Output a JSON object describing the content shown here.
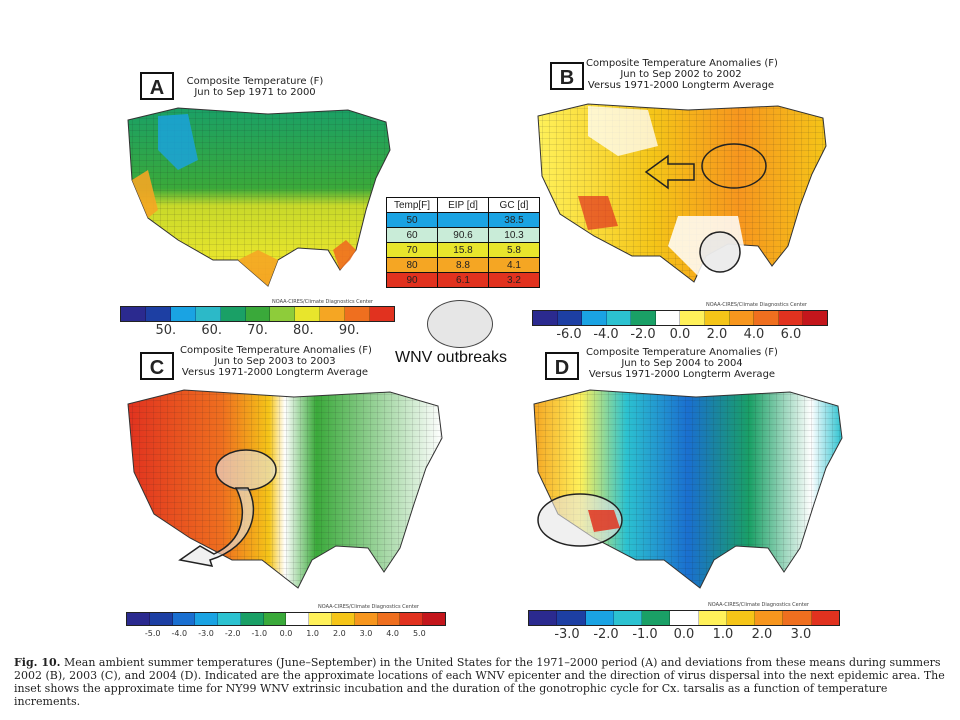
{
  "panels": {
    "a": {
      "label": "A",
      "title_lines": [
        "Composite Temperature (F)",
        "Jun to Sep 1971 to 2000"
      ],
      "colorbar": {
        "colors": [
          "#2b2a8f",
          "#1d3fa3",
          "#1aa3e3",
          "#2cb9c8",
          "#1aa066",
          "#3aa93a",
          "#8ecc3a",
          "#e8e52c",
          "#f5a623",
          "#ef6f1f",
          "#e1321f"
        ],
        "ticks": [
          "50.",
          "60.",
          "70.",
          "80.",
          "90."
        ],
        "credit": "NOAA-CIRES/Climate Diagnostics Center"
      }
    },
    "b": {
      "label": "B",
      "title_lines": [
        "Composite Temperature Anomalies (F)",
        "Jun to Sep 2002 to 2002",
        "Versus 1971-2000 Longterm Average"
      ],
      "colorbar": {
        "colors": [
          "#2b2a8f",
          "#1d3fa3",
          "#1aa3e3",
          "#2cc2d0",
          "#1aa066",
          "#ffffff",
          "#fff15a",
          "#f5c518",
          "#f7961e",
          "#ef6f1f",
          "#e1321f",
          "#c4161c"
        ],
        "ticks": [
          "-6.0",
          "-4.0",
          "-2.0",
          "0.0",
          "2.0",
          "4.0",
          "6.0"
        ],
        "credit": "NOAA-CIRES/Climate Diagnostics Center"
      }
    },
    "c": {
      "label": "C",
      "title_lines": [
        "Composite Temperature Anomalies (F)",
        "Jun to Sep 2003 to 2003",
        "Versus 1971-2000 Longterm Average"
      ],
      "colorbar": {
        "colors": [
          "#2b2a8f",
          "#1d3fa3",
          "#1a6fd0",
          "#1aa3e3",
          "#2cc2d0",
          "#1aa066",
          "#3aa93a",
          "#ffffff",
          "#fff15a",
          "#f5c518",
          "#f7961e",
          "#ef6f1f",
          "#e1321f",
          "#c4161c"
        ],
        "ticks": [
          "-5.0",
          "-4.0",
          "-3.0",
          "-2.0",
          "-1.0",
          "0.0",
          "1.0",
          "2.0",
          "3.0",
          "4.0",
          "5.0"
        ],
        "credit": "NOAA-CIRES/Climate Diagnostics Center"
      }
    },
    "d": {
      "label": "D",
      "title_lines": [
        "Composite Temperature Anomalies (F)",
        "Jun to Sep 2004 to 2004",
        "Versus 1971-2000 Longterm Average"
      ],
      "colorbar": {
        "colors": [
          "#2b2a8f",
          "#1d3fa3",
          "#1aa3e3",
          "#2cc2d0",
          "#1aa066",
          "#ffffff",
          "#fff15a",
          "#f5c518",
          "#f7961e",
          "#ef6f1f",
          "#e1321f"
        ],
        "ticks": [
          "-3.0",
          "-2.0",
          "-1.0",
          "0.0",
          "1.0",
          "2.0",
          "3.0"
        ],
        "credit": "NOAA-CIRES/Climate Diagnostics Center"
      }
    }
  },
  "inset_table": {
    "headers": [
      "Temp[F]",
      "EIP [d]",
      "GC [d]"
    ],
    "rows": [
      {
        "temp": "50",
        "eip": "",
        "gc": "38.5",
        "color": "#1aa3e3"
      },
      {
        "temp": "60",
        "eip": "90.6",
        "gc": "10.3",
        "color": "#c9ecd8"
      },
      {
        "temp": "70",
        "eip": "15.8",
        "gc": "5.8",
        "color": "#e8e52c"
      },
      {
        "temp": "80",
        "eip": "8.8",
        "gc": "4.1",
        "color": "#f5a623"
      },
      {
        "temp": "90",
        "eip": "6.1",
        "gc": "3.2",
        "color": "#e1321f"
      }
    ]
  },
  "legend": {
    "label": "WNV outbreaks"
  },
  "caption": {
    "label": "Fig. 10.",
    "text": "Mean ambient summer temperatures (June–September) in the United States for the 1971–2000 period (A) and deviations from these means during summers 2002 (B), 2003 (C), and 2004 (D). Indicated are the approximate locations of each WNV epicenter and the direction of virus dispersal into the next epidemic area. The inset shows the approximate time for NY99 WNV extrinsic incubation and the duration of the gonotrophic cycle for Cx. tarsalis as a function of temperature increments."
  },
  "colors": {
    "map_outline": "#333333",
    "outbreak_fill": "#e6e6e6"
  }
}
